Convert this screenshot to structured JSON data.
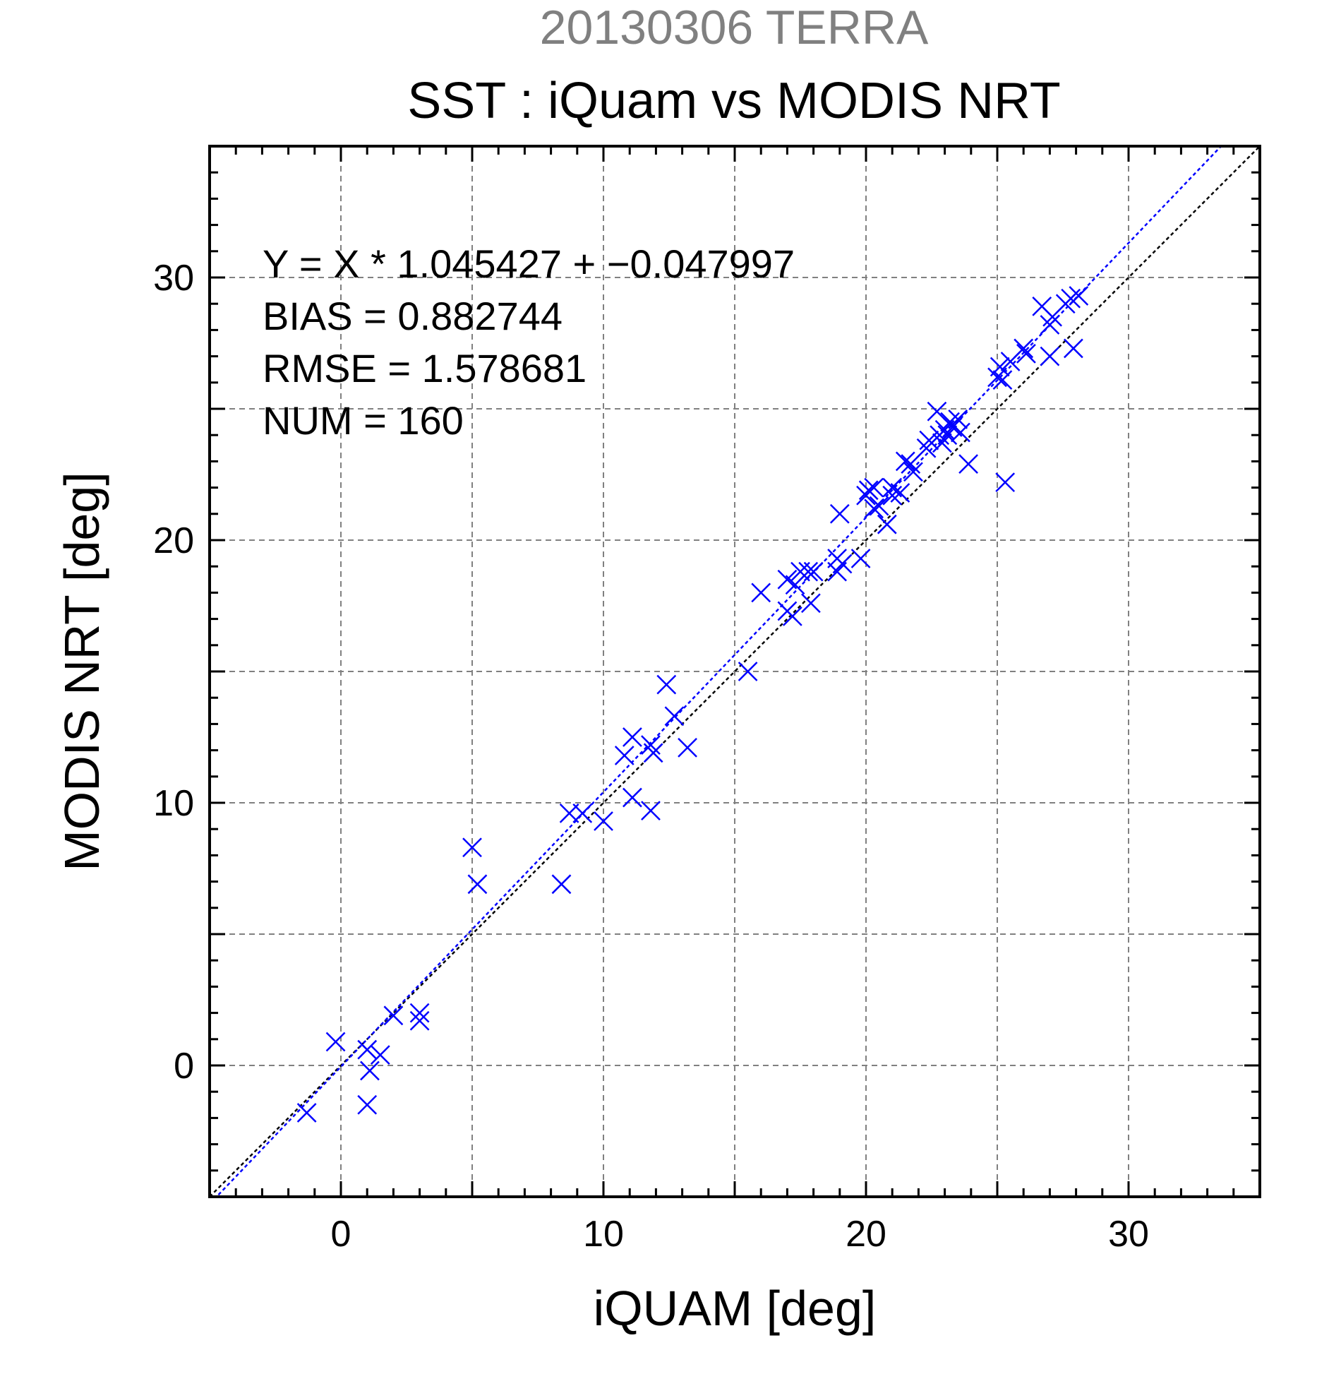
{
  "chart_data": {
    "type": "scatter",
    "supertitle": "20130306 TERRA",
    "title": "SST : iQuam vs MODIS NRT",
    "xlabel": "iQUAM [deg]",
    "ylabel": "MODIS NRT [deg]",
    "xlim": [
      -5,
      35
    ],
    "ylim": [
      -5,
      35
    ],
    "xticks": [
      0,
      10,
      20,
      30
    ],
    "yticks": [
      0,
      10,
      20,
      30
    ],
    "grid": true,
    "grid_step": 5,
    "minor_tick_step": 1,
    "stats": [
      "Y = X * 1.045427 + −0.047997",
      "BIAS = 0.882744",
      "RMSE = 1.578681",
      "NUM = 160"
    ],
    "regression": {
      "slope": 1.045427,
      "intercept": -0.047997,
      "color": "#0000ff"
    },
    "identity_line_color": "#000000",
    "marker": "x",
    "marker_color": "#0000ff",
    "points": [
      [
        -1.3,
        -1.8
      ],
      [
        -0.2,
        0.9
      ],
      [
        1.0,
        0.6
      ],
      [
        1.1,
        -0.2
      ],
      [
        1.0,
        -1.5
      ],
      [
        1.5,
        0.4
      ],
      [
        2.0,
        1.9
      ],
      [
        3.0,
        2.0
      ],
      [
        3.0,
        1.7
      ],
      [
        5.0,
        8.3
      ],
      [
        5.2,
        6.9
      ],
      [
        8.4,
        6.9
      ],
      [
        8.7,
        9.6
      ],
      [
        9.2,
        9.6
      ],
      [
        10.0,
        9.3
      ],
      [
        10.8,
        11.8
      ],
      [
        11.1,
        12.5
      ],
      [
        11.1,
        10.2
      ],
      [
        11.8,
        12.2
      ],
      [
        11.8,
        9.7
      ],
      [
        11.9,
        11.9
      ],
      [
        12.4,
        14.5
      ],
      [
        12.7,
        13.3
      ],
      [
        13.2,
        12.1
      ],
      [
        15.5,
        15.0
      ],
      [
        16.0,
        18.0
      ],
      [
        17.0,
        18.5
      ],
      [
        17.0,
        17.3
      ],
      [
        17.2,
        17.1
      ],
      [
        17.3,
        18.3
      ],
      [
        17.5,
        18.8
      ],
      [
        17.8,
        18.8
      ],
      [
        17.9,
        17.6
      ],
      [
        18.0,
        18.8
      ],
      [
        18.9,
        19.3
      ],
      [
        18.9,
        18.8
      ],
      [
        19.0,
        21.0
      ],
      [
        19.1,
        19.1
      ],
      [
        19.8,
        19.3
      ],
      [
        20.0,
        21.7
      ],
      [
        20.1,
        21.9
      ],
      [
        20.3,
        22.0
      ],
      [
        20.3,
        21.2
      ],
      [
        20.5,
        21.3
      ],
      [
        20.8,
        20.6
      ],
      [
        21.0,
        22.0
      ],
      [
        21.0,
        21.7
      ],
      [
        21.3,
        21.8
      ],
      [
        21.5,
        23.0
      ],
      [
        21.7,
        22.9
      ],
      [
        21.8,
        22.6
      ],
      [
        22.3,
        23.5
      ],
      [
        22.4,
        23.8
      ],
      [
        22.7,
        24.9
      ],
      [
        22.8,
        24.0
      ],
      [
        22.9,
        23.7
      ],
      [
        23.0,
        24.2
      ],
      [
        23.1,
        24.0
      ],
      [
        23.2,
        24.5
      ],
      [
        23.3,
        24.3
      ],
      [
        23.5,
        24.6
      ],
      [
        23.6,
        24.1
      ],
      [
        23.9,
        22.9
      ],
      [
        25.0,
        26.2
      ],
      [
        25.1,
        26.6
      ],
      [
        25.2,
        26.1
      ],
      [
        25.3,
        22.2
      ],
      [
        25.5,
        26.8
      ],
      [
        26.0,
        27.3
      ],
      [
        26.1,
        27.1
      ],
      [
        26.7,
        28.9
      ],
      [
        27.0,
        27.0
      ],
      [
        27.0,
        28.2
      ],
      [
        27.1,
        28.5
      ],
      [
        27.6,
        29.0
      ],
      [
        27.8,
        29.2
      ],
      [
        27.9,
        27.3
      ],
      [
        28.1,
        29.3
      ]
    ]
  }
}
